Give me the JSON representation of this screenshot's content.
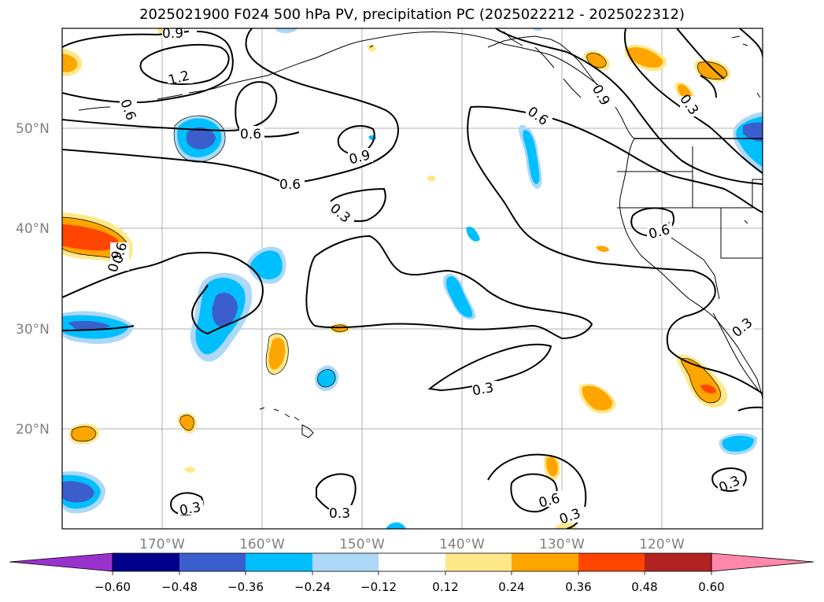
{
  "title": "2025021900 F024 500 hPa PV, precipitation PC (2025022212 - 2025022312)",
  "lat_labels": [
    "50°N",
    "40°N",
    "30°N",
    "20°N"
  ],
  "lon_labels": [
    "170°W",
    "160°W",
    "150°W",
    "140°W",
    "130°W",
    "120°W"
  ],
  "contour_labels": [
    "0.9",
    "1.2",
    "0.6",
    "0.6",
    "0.9",
    "0.6",
    "0.3",
    "0.6",
    "0.9",
    "0.3",
    "0.6",
    "0.9",
    "0.6",
    "0.3",
    "0.3",
    "0.6",
    "0.3",
    "0.3",
    "0.3",
    "0.3"
  ],
  "colorbar": {
    "ticks": [
      "−0.60",
      "−0.48",
      "−0.36",
      "−0.24",
      "−0.12",
      "0.12",
      "0.24",
      "0.36",
      "0.48",
      "0.60"
    ],
    "colors": [
      "#9932cc",
      "#00008b",
      "#3a5fcd",
      "#00bfff",
      "#add8f7",
      "#ffffff",
      "#ffe88a",
      "#ffa500",
      "#ff4500",
      "#b22222",
      "#ff88aa"
    ]
  }
}
